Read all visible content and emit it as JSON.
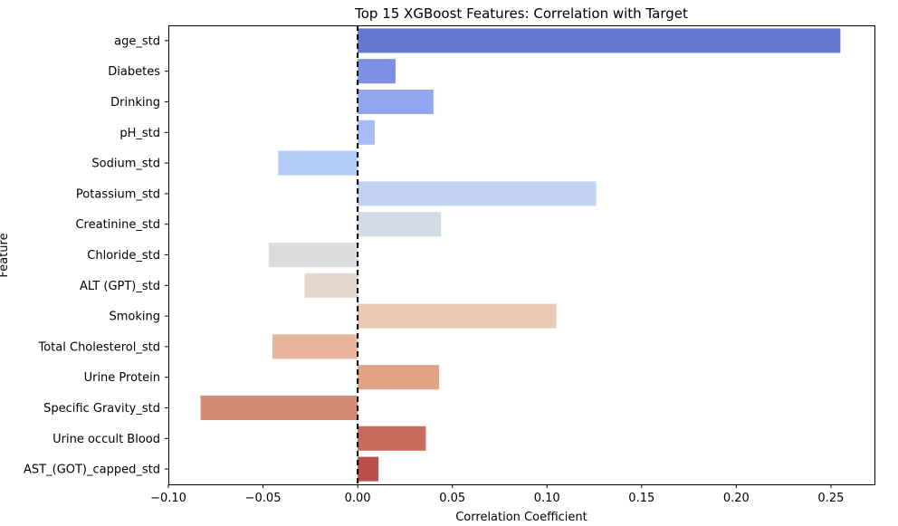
{
  "chart_data": {
    "type": "bar",
    "orientation": "horizontal",
    "title": "Top 15 XGBoost Features: Correlation with Target",
    "xlabel": "Correlation Coefficient",
    "ylabel": "Feature",
    "xlim": [
      -0.1,
      0.273
    ],
    "x_ticks": [
      -0.1,
      -0.05,
      0.0,
      0.05,
      0.1,
      0.15,
      0.2,
      0.25
    ],
    "x_tick_labels": [
      "−0.10",
      "−0.05",
      "0.00",
      "0.05",
      "0.10",
      "0.15",
      "0.20",
      "0.25"
    ],
    "grid": false,
    "reference_line": {
      "x": 0,
      "style": "dashed",
      "color": "#000000"
    },
    "categories": [
      "age_std",
      "Diabetes",
      "Drinking",
      "pH_std",
      "Sodium_std",
      "Potassium_std",
      "Creatinine_std",
      "Chloride_std",
      "ALT (GPT)_std",
      "Smoking",
      "Total Cholesterol_std",
      "Urine Protein",
      "Specific Gravity_std",
      "Urine occult Blood",
      "AST_(GOT)_capped_std"
    ],
    "values": [
      0.255,
      0.02,
      0.04,
      0.009,
      -0.042,
      0.126,
      0.044,
      -0.047,
      -0.028,
      0.105,
      -0.045,
      0.043,
      -0.083,
      0.036,
      0.011
    ],
    "colors": [
      "#6777cf",
      "#7c91e4",
      "#92a7ef",
      "#a7bdf9",
      "#b4cbf8",
      "#c3d1f3",
      "#d3dbe7",
      "#dcdcdc",
      "#e6d5cb",
      "#ebc8b4",
      "#e8b49b",
      "#e2a286",
      "#d58b75",
      "#c86c5d",
      "#bb4f4c"
    ]
  }
}
